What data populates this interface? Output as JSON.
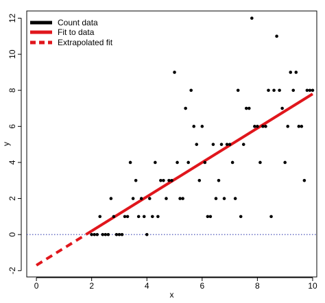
{
  "chart_data": {
    "type": "scatter",
    "title": "",
    "xlabel": "x",
    "ylabel": "y",
    "xlim": [
      -0.35,
      10.15
    ],
    "ylim": [
      -2.35,
      12.4
    ],
    "xticks": [
      0,
      2,
      4,
      6,
      8,
      10
    ],
    "yticks": [
      -2,
      0,
      2,
      4,
      6,
      8,
      10,
      12
    ],
    "reference_line": {
      "y": 0,
      "style": "dotted",
      "color": "#1f2aa8"
    },
    "legend": {
      "position": "top-left",
      "entries": [
        {
          "label": "Count data",
          "color": "#000000",
          "style": "solid"
        },
        {
          "label": "Fit to data",
          "color": "#e0161c",
          "style": "solid"
        },
        {
          "label": "Extrapolated fit",
          "color": "#e0161c",
          "style": "dashed"
        }
      ]
    },
    "series": [
      {
        "name": "Count data",
        "kind": "points",
        "color": "#000000",
        "points": [
          [
            2.0,
            0
          ],
          [
            2.1,
            0
          ],
          [
            2.2,
            0
          ],
          [
            2.3,
            1
          ],
          [
            2.4,
            0
          ],
          [
            2.5,
            0
          ],
          [
            2.6,
            0
          ],
          [
            2.7,
            2
          ],
          [
            2.8,
            1
          ],
          [
            2.9,
            0
          ],
          [
            3.0,
            0
          ],
          [
            3.1,
            0
          ],
          [
            3.2,
            1
          ],
          [
            3.3,
            1
          ],
          [
            3.4,
            4
          ],
          [
            3.5,
            2
          ],
          [
            3.6,
            3
          ],
          [
            3.7,
            1
          ],
          [
            3.8,
            2
          ],
          [
            3.9,
            1
          ],
          [
            4.0,
            0
          ],
          [
            4.1,
            2
          ],
          [
            4.2,
            1
          ],
          [
            4.3,
            4
          ],
          [
            4.4,
            1
          ],
          [
            4.5,
            3
          ],
          [
            4.6,
            3
          ],
          [
            4.7,
            2
          ],
          [
            4.8,
            3
          ],
          [
            4.9,
            3
          ],
          [
            5.0,
            9
          ],
          [
            5.1,
            4
          ],
          [
            5.2,
            2
          ],
          [
            5.3,
            2
          ],
          [
            5.4,
            7
          ],
          [
            5.5,
            4
          ],
          [
            5.6,
            8
          ],
          [
            5.7,
            6
          ],
          [
            5.8,
            5
          ],
          [
            5.9,
            3
          ],
          [
            6.0,
            6
          ],
          [
            6.1,
            4
          ],
          [
            6.2,
            1
          ],
          [
            6.3,
            1
          ],
          [
            6.4,
            5
          ],
          [
            6.5,
            2
          ],
          [
            6.6,
            3
          ],
          [
            6.7,
            5
          ],
          [
            6.8,
            2
          ],
          [
            6.9,
            5
          ],
          [
            7.0,
            5
          ],
          [
            7.1,
            4
          ],
          [
            7.2,
            2
          ],
          [
            7.3,
            8
          ],
          [
            7.4,
            1
          ],
          [
            7.5,
            5
          ],
          [
            7.6,
            7
          ],
          [
            7.7,
            7
          ],
          [
            7.8,
            12
          ],
          [
            7.9,
            6
          ],
          [
            8.0,
            6
          ],
          [
            8.1,
            4
          ],
          [
            8.2,
            6
          ],
          [
            8.3,
            6
          ],
          [
            8.4,
            8
          ],
          [
            8.5,
            1
          ],
          [
            8.6,
            8
          ],
          [
            8.7,
            11
          ],
          [
            8.8,
            8
          ],
          [
            8.9,
            7
          ],
          [
            9.0,
            4
          ],
          [
            9.1,
            6
          ],
          [
            9.2,
            9
          ],
          [
            9.3,
            8
          ],
          [
            9.4,
            9
          ],
          [
            9.5,
            6
          ],
          [
            9.6,
            6
          ],
          [
            9.7,
            3
          ],
          [
            9.8,
            8
          ],
          [
            9.9,
            8
          ],
          [
            10.0,
            8
          ]
        ]
      },
      {
        "name": "Fit to data",
        "kind": "line",
        "color": "#e0161c",
        "style": "solid",
        "x": [
          2.0,
          10.0
        ],
        "y": [
          0.2,
          7.8
        ]
      },
      {
        "name": "Extrapolated fit",
        "kind": "line",
        "color": "#e0161c",
        "style": "dashed",
        "x": [
          0.0,
          2.0
        ],
        "y": [
          -1.7,
          0.2
        ]
      }
    ]
  }
}
